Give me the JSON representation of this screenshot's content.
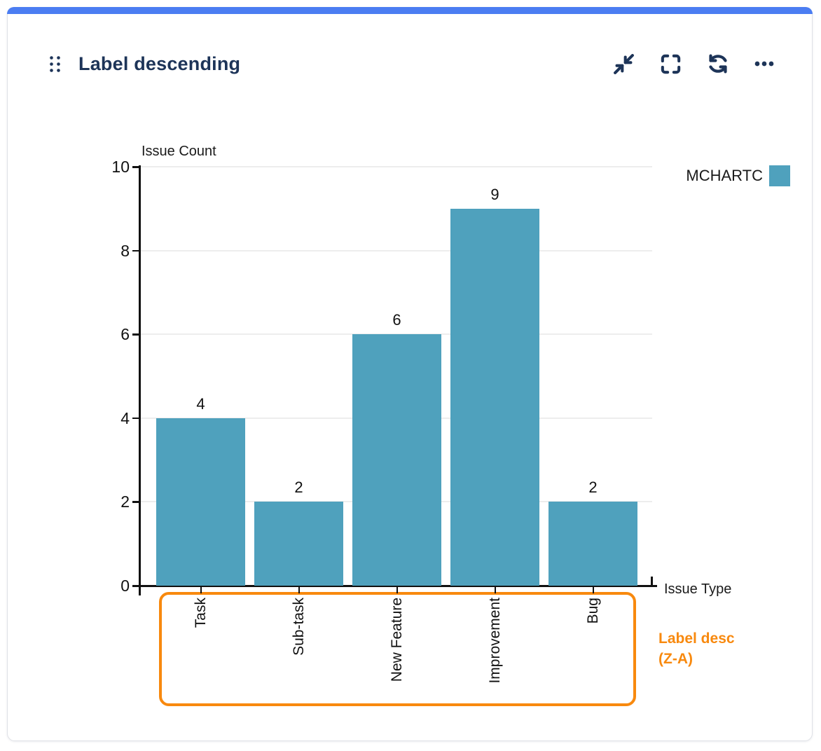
{
  "card": {
    "title": "Label descending",
    "accent_color": "#4b7df2"
  },
  "toolbar": {
    "icons": [
      "collapse-icon",
      "fullscreen-icon",
      "refresh-icon",
      "ellipsis-icon"
    ]
  },
  "chart_data": {
    "type": "bar",
    "title": "Label descending",
    "categories": [
      "Task",
      "Sub-task",
      "New Feature",
      "Improvement",
      "Bug"
    ],
    "values": [
      4,
      2,
      6,
      9,
      2
    ],
    "series_name": "MCHARTC",
    "legend_position": "top-right",
    "xlabel": "Issue Type",
    "ylabel": "Issue Count",
    "ylim": [
      0,
      10
    ],
    "y_ticks": [
      0,
      2,
      4,
      6,
      8,
      10
    ],
    "grid": true,
    "bar_color": "#4fa1bd",
    "annotation": {
      "line1": "Label desc",
      "line2": "(Z-A)",
      "color": "#f8890e"
    }
  }
}
